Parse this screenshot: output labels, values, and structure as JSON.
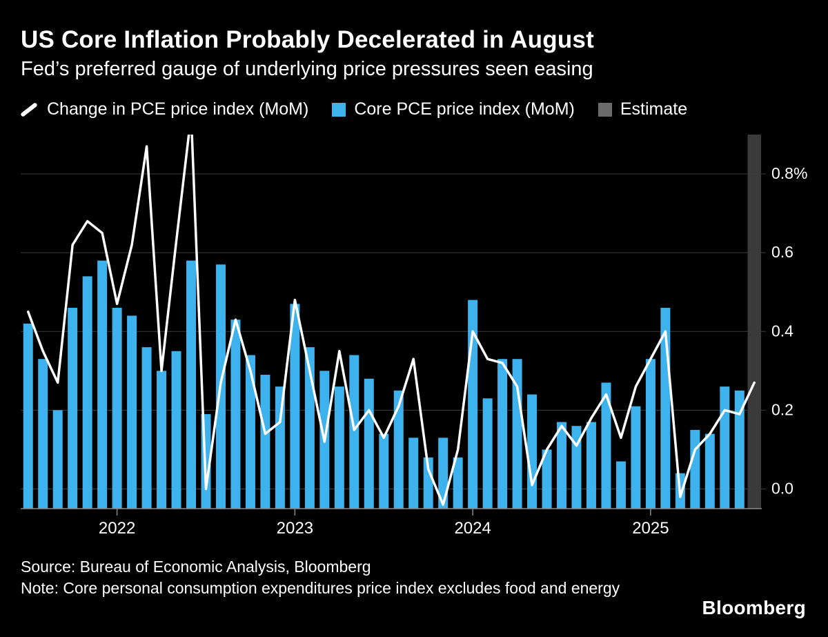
{
  "header": {
    "title": "US Core Inflation Probably Decelerated in August",
    "subtitle": "Fed’s preferred gauge of underlying price pressures seen easing"
  },
  "legend": [
    {
      "label": "Change in PCE price index (MoM)",
      "marker": "line",
      "color": "#ffffff"
    },
    {
      "label": "Core PCE price index (MoM)",
      "marker": "square",
      "color": "#3eb2ed"
    },
    {
      "label": "Estimate",
      "marker": "square",
      "color": "#6b6b6b"
    }
  ],
  "footer": {
    "source": "Source: Bureau of Economic Analysis, Bloomberg",
    "note": "Note: Core personal consumption expenditures price index excludes food and energy",
    "brand": "Bloomberg"
  },
  "chart_data": {
    "type": "bar+line",
    "title": "US Core Inflation Probably Decelerated in August",
    "unit": "%",
    "background": "#000000",
    "grid_color": "#3d3d3d",
    "axis_color": "#8a8a8a",
    "ylim": [
      -0.05,
      0.9
    ],
    "y_ticks": [
      0.0,
      0.2,
      0.4,
      0.6,
      0.8
    ],
    "y_tick_labels": [
      "0.0",
      "0.2",
      "0.4",
      "0.6",
      "0.8%"
    ],
    "x_tick_labels": [
      "2022",
      "2023",
      "2024",
      "2025"
    ],
    "months": [
      "2021-07",
      "2021-08",
      "2021-09",
      "2021-10",
      "2021-11",
      "2021-12",
      "2022-01",
      "2022-02",
      "2022-03",
      "2022-04",
      "2022-05",
      "2022-06",
      "2022-07",
      "2022-08",
      "2022-09",
      "2022-10",
      "2022-11",
      "2022-12",
      "2023-01",
      "2023-02",
      "2023-03",
      "2023-04",
      "2023-05",
      "2023-06",
      "2023-07",
      "2023-08",
      "2023-09",
      "2023-10",
      "2023-11",
      "2023-12",
      "2024-01",
      "2024-02",
      "2024-03",
      "2024-04",
      "2024-05",
      "2024-06",
      "2024-07",
      "2024-08",
      "2024-09",
      "2024-10",
      "2024-11",
      "2024-12",
      "2025-01",
      "2025-02",
      "2025-03",
      "2025-04",
      "2025-05",
      "2025-06",
      "2025-07",
      "2025-08"
    ],
    "series": [
      {
        "name": "Change in PCE price index (MoM)",
        "type": "line",
        "color": "#ffffff",
        "values": [
          0.45,
          0.35,
          0.27,
          0.62,
          0.68,
          0.65,
          0.47,
          0.62,
          0.87,
          0.3,
          0.63,
          0.95,
          0.0,
          0.27,
          0.43,
          0.3,
          0.14,
          0.17,
          0.48,
          0.3,
          0.12,
          0.35,
          0.15,
          0.2,
          0.13,
          0.21,
          0.33,
          0.05,
          -0.04,
          0.1,
          0.4,
          0.33,
          0.32,
          0.26,
          0.01,
          0.1,
          0.16,
          0.11,
          0.18,
          0.24,
          0.13,
          0.26,
          0.33,
          0.4,
          -0.02,
          0.1,
          0.14,
          0.2,
          0.19,
          0.27
        ]
      },
      {
        "name": "Core PCE price index (MoM)",
        "type": "bar",
        "color": "#3eb2ed",
        "values": [
          0.42,
          0.33,
          0.2,
          0.46,
          0.54,
          0.58,
          0.46,
          0.44,
          0.36,
          0.3,
          0.35,
          0.58,
          0.19,
          0.57,
          0.43,
          0.34,
          0.29,
          0.26,
          0.47,
          0.36,
          0.3,
          0.26,
          0.34,
          0.28,
          0.14,
          0.25,
          0.13,
          0.08,
          0.13,
          0.08,
          0.48,
          0.23,
          0.33,
          0.33,
          0.24,
          0.1,
          0.17,
          0.16,
          0.17,
          0.27,
          0.07,
          0.21,
          0.33,
          0.46,
          0.04,
          0.15,
          0.14,
          0.26,
          0.25,
          null
        ]
      }
    ],
    "estimate": {
      "label": "Estimate",
      "month": "2025-08",
      "band_color": "#3a3a3a"
    },
    "legend_position": "top"
  }
}
